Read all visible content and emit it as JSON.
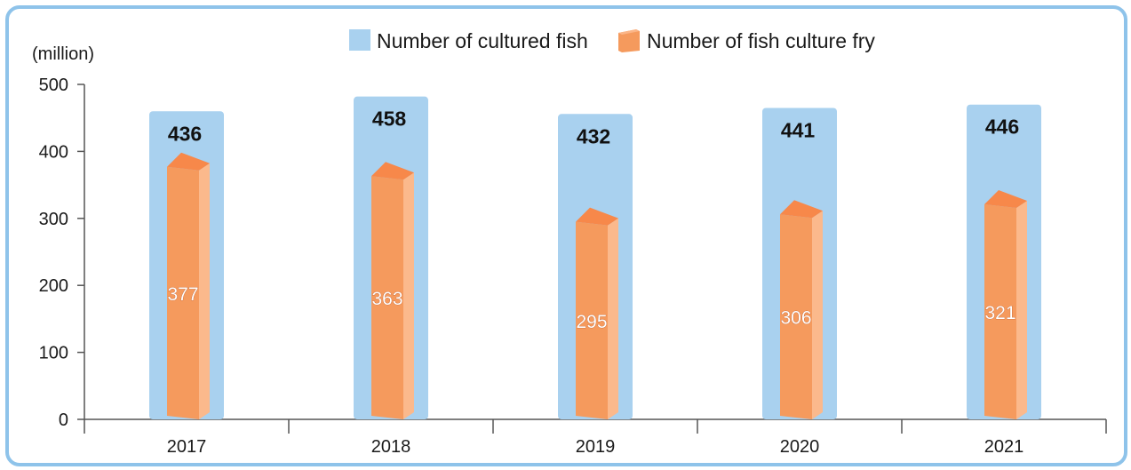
{
  "chart_data": {
    "type": "bar",
    "categories": [
      "2017",
      "2018",
      "2019",
      "2020",
      "2021"
    ],
    "series": [
      {
        "name": "Number of cultured fish",
        "values": [
          436,
          458,
          432,
          441,
          446
        ],
        "color": "#a9d1ef"
      },
      {
        "name": "Number of fish culture fry",
        "values": [
          377,
          363,
          295,
          306,
          321
        ],
        "color": "#f59a5d"
      }
    ],
    "unit_label": "(million)",
    "ylim": [
      0,
      500
    ],
    "yticks": [
      0,
      100,
      200,
      300,
      400,
      500
    ],
    "grid": false,
    "legend_position": "top-center"
  }
}
